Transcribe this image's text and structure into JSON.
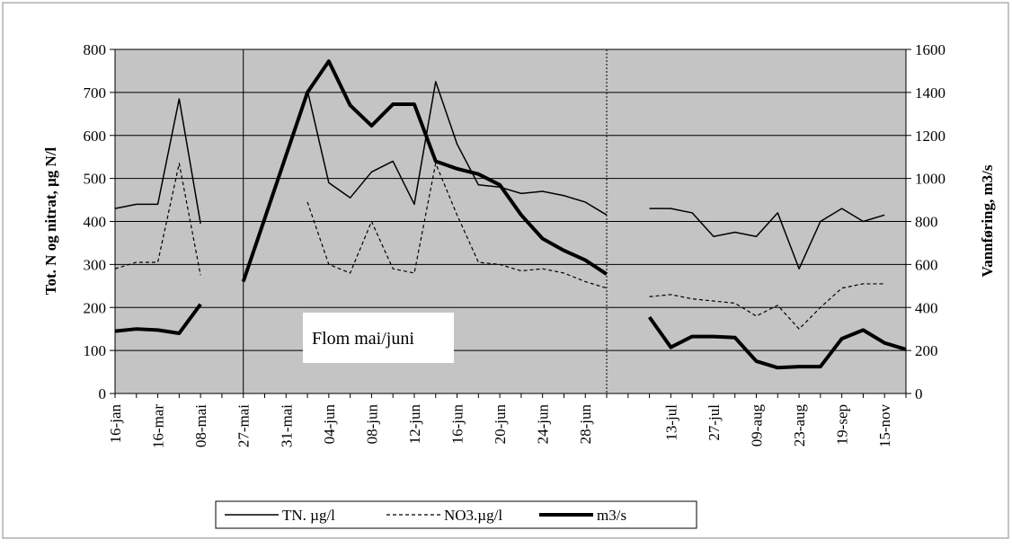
{
  "chart_data": {
    "type": "line",
    "y_label": "Tot. N og nitrat, µg N/l",
    "y2_label": "Vannføring, m3/s",
    "annotation": "Flom mai/juni",
    "categories": [
      "16-jan",
      null,
      "16-mar",
      null,
      "08-mai",
      null,
      "27-mai",
      null,
      "31-mai",
      null,
      "04-jun",
      null,
      "08-jun",
      null,
      "12-jun",
      null,
      "16-jun",
      null,
      "20-jun",
      null,
      "24-jun",
      null,
      "28-jun",
      null,
      null,
      null,
      "13-jul",
      null,
      "27-jul",
      null,
      "09-aug",
      null,
      "23-aug",
      null,
      "19-sep",
      null,
      "15-nov",
      null
    ],
    "series": [
      {
        "name": "TN. µg/l",
        "color": "#000000",
        "style": "solid",
        "values": [
          430,
          440,
          440,
          685,
          395,
          null,
          null,
          null,
          null,
          705,
          490,
          455,
          515,
          540,
          440,
          725,
          580,
          485,
          480,
          465,
          470,
          460,
          445,
          415,
          null,
          430,
          430,
          420,
          365,
          375,
          365,
          420,
          290,
          400,
          430,
          400,
          415,
          null
        ]
      },
      {
        "name": "NO3.µg/l",
        "color": "#000000",
        "style": "dashed",
        "values": [
          290,
          305,
          305,
          535,
          275,
          null,
          null,
          null,
          null,
          445,
          300,
          280,
          400,
          290,
          280,
          535,
          415,
          305,
          300,
          285,
          290,
          280,
          260,
          245,
          null,
          225,
          230,
          220,
          215,
          210,
          180,
          205,
          150,
          200,
          245,
          255,
          255,
          null
        ]
      },
      {
        "name": "m3/s",
        "color": "#000000",
        "style": "thick",
        "axis": "y2",
        "values": [
          290,
          300,
          295,
          280,
          415,
          null,
          520,
          813,
          1107,
          1400,
          1545,
          1340,
          1245,
          1345,
          1345,
          1080,
          1045,
          1020,
          970,
          830,
          720,
          665,
          620,
          555,
          null,
          355,
          215,
          265,
          265,
          260,
          150,
          120,
          125,
          125,
          255,
          295,
          235,
          205
        ]
      }
    ],
    "ylim": [
      0,
      800
    ],
    "yticks": [
      0,
      100,
      200,
      300,
      400,
      500,
      600,
      700,
      800
    ],
    "y2lim": [
      0,
      1600
    ],
    "y2ticks": [
      0,
      200,
      400,
      600,
      800,
      1000,
      1200,
      1400,
      1600
    ],
    "grid": true,
    "legend": "bottom"
  }
}
